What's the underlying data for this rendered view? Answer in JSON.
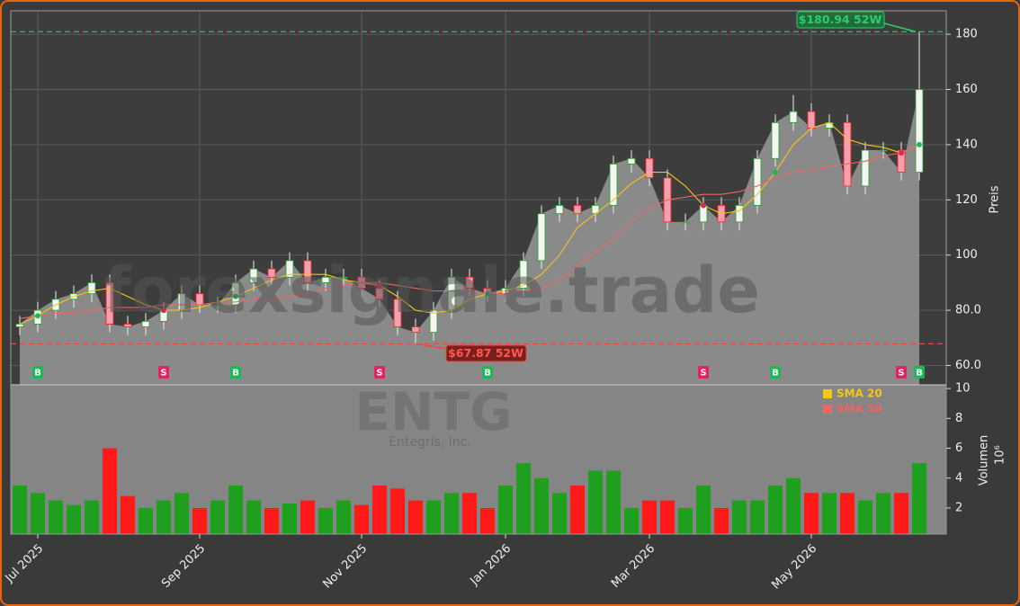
{
  "chart_data": [
    {
      "type": "candlestick",
      "watermark": "forexsignale.trade",
      "ylabel": "Preis",
      "ylim": [
        53,
        188.5
      ],
      "yticks": [
        {
          "value": 60,
          "label": "60.0"
        },
        {
          "value": 80,
          "label": "80.0"
        },
        100,
        120,
        140,
        160,
        180
      ],
      "grid": true,
      "up_color": "#1fa01f",
      "down_color": "#ff1a1a",
      "area_color": "#8a8a8a",
      "open": [
        74,
        75,
        80,
        84,
        86,
        90,
        75,
        74,
        76,
        80,
        86,
        82,
        82,
        90,
        95,
        92,
        98,
        90,
        92,
        92,
        88,
        84,
        74,
        72,
        80,
        92,
        88,
        86,
        88,
        98,
        115,
        118,
        115,
        118,
        133,
        135,
        128,
        112,
        112,
        118,
        112,
        118,
        135,
        148,
        152,
        146,
        148,
        125,
        138,
        138,
        130
      ],
      "high": [
        78,
        83,
        87,
        89,
        93,
        93,
        78,
        79,
        83,
        89,
        89,
        85,
        93,
        98,
        98,
        101,
        101,
        95,
        95,
        95,
        91,
        87,
        77,
        83,
        95,
        95,
        91,
        91,
        101,
        118,
        121,
        121,
        121,
        136,
        138,
        138,
        131,
        115,
        121,
        121,
        121,
        138,
        151,
        158,
        155,
        151,
        151,
        141,
        141,
        141,
        180.94
      ],
      "low": [
        71,
        72,
        77,
        81,
        83,
        72,
        71,
        71,
        73,
        77,
        79,
        79,
        79,
        87,
        89,
        89,
        87,
        87,
        89,
        85,
        81,
        71,
        67.87,
        69,
        77,
        85,
        83,
        83,
        85,
        95,
        112,
        112,
        112,
        115,
        130,
        125,
        109,
        109,
        109,
        109,
        109,
        115,
        132,
        145,
        143,
        143,
        122,
        122,
        135,
        127,
        127
      ],
      "close": [
        75,
        80,
        84,
        86,
        90,
        75,
        74,
        76,
        80,
        86,
        82,
        82,
        90,
        95,
        92,
        98,
        90,
        92,
        92,
        88,
        84,
        74,
        72,
        80,
        92,
        88,
        86,
        88,
        98,
        115,
        118,
        115,
        118,
        133,
        135,
        128,
        112,
        112,
        118,
        112,
        118,
        135,
        148,
        152,
        146,
        148,
        125,
        138,
        138,
        130,
        160
      ],
      "series": [
        {
          "name": "SMA 20",
          "color": "#f5c518",
          "values": [
            75,
            78,
            82,
            85,
            87,
            88,
            85,
            82,
            80,
            80,
            81,
            83,
            85,
            88,
            91,
            93,
            93,
            93,
            91,
            90,
            89,
            85,
            80,
            79,
            80,
            84,
            86,
            87,
            89,
            93,
            100,
            110,
            115,
            120,
            126,
            130,
            130,
            125,
            118,
            115,
            116,
            122,
            130,
            140,
            146,
            148,
            142,
            140,
            139,
            137,
            140
          ]
        },
        {
          "name": "SMA 50",
          "color": "#f06464",
          "values": [
            77,
            78,
            79,
            79,
            80,
            81,
            81,
            81,
            82,
            82,
            82,
            83,
            83,
            84,
            84,
            85,
            86,
            88,
            89,
            90,
            90,
            89,
            88,
            87,
            87,
            87,
            86,
            86,
            87,
            88,
            91,
            96,
            101,
            106,
            112,
            117,
            120,
            121,
            122,
            122,
            123,
            125,
            128,
            130,
            131,
            132,
            133,
            134,
            136,
            137,
            140
          ]
        }
      ],
      "signals": [
        null,
        "B",
        null,
        null,
        null,
        null,
        null,
        null,
        "S",
        null,
        null,
        null,
        "B",
        null,
        null,
        null,
        null,
        null,
        null,
        null,
        "S",
        null,
        null,
        null,
        null,
        null,
        "B",
        null,
        null,
        null,
        null,
        null,
        null,
        null,
        null,
        null,
        null,
        null,
        "S",
        null,
        null,
        null,
        "B",
        null,
        null,
        null,
        null,
        null,
        null,
        "S",
        "B"
      ],
      "high_52w": {
        "value": 180.94,
        "label": "$180.94 52W"
      },
      "low_52w": {
        "value": 67.87,
        "label": "$67.87 52W"
      }
    },
    {
      "type": "bar",
      "watermark": "ENTG",
      "subtitle": "Entegris, Inc.",
      "ylabel": "Volumen",
      "yunit": "10⁶",
      "ylim": [
        0.25,
        10.25
      ],
      "yticks": [
        2,
        4,
        6,
        8,
        10
      ],
      "categories": [
        null,
        "Jul 2025",
        null,
        null,
        null,
        null,
        null,
        null,
        null,
        null,
        "Sep 2025",
        null,
        null,
        null,
        null,
        null,
        null,
        null,
        null,
        "Nov 2025",
        null,
        null,
        null,
        null,
        null,
        null,
        null,
        "Jan 2026",
        null,
        null,
        null,
        null,
        null,
        null,
        null,
        "Mar 2026",
        null,
        null,
        null,
        null,
        null,
        null,
        null,
        null,
        "May 2026",
        null,
        null,
        null,
        null,
        null,
        null
      ],
      "values": [
        3.5,
        3.0,
        2.5,
        2.2,
        2.5,
        6.0,
        2.8,
        2.0,
        2.5,
        3.0,
        2.0,
        2.5,
        3.5,
        2.5,
        2.0,
        2.3,
        2.5,
        2.0,
        2.5,
        2.2,
        3.5,
        3.3,
        2.5,
        2.5,
        3.0,
        3.0,
        2.0,
        3.5,
        5.0,
        4.0,
        3.0,
        3.5,
        4.5,
        4.5,
        2.0,
        2.5,
        2.5,
        2.0,
        3.5,
        2.0,
        2.5,
        2.5,
        3.5,
        4.0,
        3.0,
        3.0,
        3.0,
        2.5,
        3.0,
        3.0,
        5.0
      ]
    }
  ]
}
